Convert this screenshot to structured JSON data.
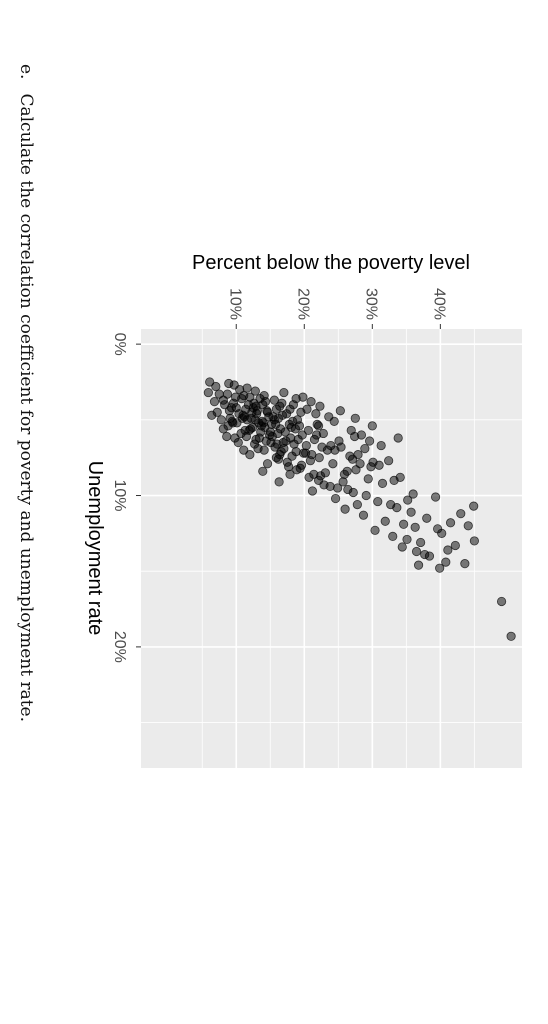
{
  "question": {
    "letter": "e.",
    "text": "Calculate the correlation coefficient for poverty and unemployment rate."
  },
  "chart_data": {
    "type": "scatter",
    "x_axis": {
      "label": "Unemployment rate",
      "range": [
        -1,
        28
      ],
      "ticks": [
        0,
        10,
        20
      ],
      "tick_labels": [
        "0%",
        "10%",
        "20%"
      ],
      "minor_ticks": [
        5,
        15,
        25
      ]
    },
    "y_axis": {
      "label": "Percent below the poverty level",
      "range": [
        -4,
        52
      ],
      "ticks": [
        10,
        20,
        30,
        40
      ],
      "tick_labels": [
        "10%",
        "20%",
        "30%",
        "40%"
      ],
      "minor_ticks": [
        5,
        15,
        25,
        35,
        45
      ]
    },
    "panel_background": "#ebebeb",
    "point_color": "#000000",
    "point_opacity": 0.5,
    "points": [
      [
        4.2,
        12.5
      ],
      [
        4.8,
        11.2
      ],
      [
        5.1,
        13.8
      ],
      [
        3.9,
        9.6
      ],
      [
        4.5,
        14.6
      ],
      [
        5.6,
        12.1
      ],
      [
        4.0,
        8.3
      ],
      [
        6.2,
        13.4
      ],
      [
        5.3,
        15.2
      ],
      [
        4.6,
        10.4
      ],
      [
        3.6,
        10.8
      ],
      [
        5.9,
        16.1
      ],
      [
        4.4,
        13.1
      ],
      [
        6.8,
        15.7
      ],
      [
        5.0,
        11.6
      ],
      [
        3.3,
        7.5
      ],
      [
        4.9,
        9.1
      ],
      [
        6.4,
        17.3
      ],
      [
        5.5,
        14.2
      ],
      [
        7.1,
        16.6
      ],
      [
        4.1,
        12.9
      ],
      [
        5.7,
        11.9
      ],
      [
        6.0,
        14.9
      ],
      [
        3.8,
        6.8
      ],
      [
        4.3,
        15.9
      ],
      [
        6.6,
        12.7
      ],
      [
        5.2,
        10.1
      ],
      [
        7.4,
        18.2
      ],
      [
        4.7,
        16.8
      ],
      [
        5.8,
        13.6
      ],
      [
        3.5,
        9.9
      ],
      [
        6.3,
        19.1
      ],
      [
        5.4,
        8.8
      ],
      [
        4.6,
        17.4
      ],
      [
        7.0,
        14.1
      ],
      [
        4.9,
        12.2
      ],
      [
        3.2,
        5.9
      ],
      [
        6.1,
        15.3
      ],
      [
        5.6,
        18.7
      ],
      [
        4.3,
        11.4
      ],
      [
        7.6,
        16.2
      ],
      [
        5.1,
        9.4
      ],
      [
        6.7,
        20.3
      ],
      [
        4.0,
        13.9
      ],
      [
        5.3,
        17.8
      ],
      [
        3.7,
        8.1
      ],
      [
        6.9,
        13.2
      ],
      [
        4.8,
        14.8
      ],
      [
        8.0,
        19.6
      ],
      [
        5.9,
        10.7
      ],
      [
        4.5,
        7.2
      ],
      [
        6.2,
        18.0
      ],
      [
        3.4,
        11.1
      ],
      [
        7.3,
        21.1
      ],
      [
        5.0,
        15.6
      ],
      [
        4.2,
        10.0
      ],
      [
        6.5,
        16.9
      ],
      [
        5.7,
        20.6
      ],
      [
        3.9,
        12.6
      ],
      [
        7.8,
        17.5
      ],
      [
        4.4,
        9.0
      ],
      [
        6.0,
        21.8
      ],
      [
        5.2,
        13.3
      ],
      [
        8.3,
        18.9
      ],
      [
        4.7,
        6.4
      ],
      [
        6.4,
        14.4
      ],
      [
        3.6,
        13.5
      ],
      [
        7.2,
        19.9
      ],
      [
        5.5,
        12.4
      ],
      [
        4.1,
        16.4
      ],
      [
        8.6,
        21.4
      ],
      [
        5.8,
        15.0
      ],
      [
        6.8,
        22.6
      ],
      [
        4.9,
        10.9
      ],
      [
        3.3,
        8.7
      ],
      [
        7.5,
        15.9
      ],
      [
        5.4,
        19.3
      ],
      [
        6.1,
        11.5
      ],
      [
        4.6,
        13.0
      ],
      [
        9.0,
        22.1
      ],
      [
        5.3,
        21.9
      ],
      [
        6.6,
        18.5
      ],
      [
        3.8,
        14.3
      ],
      [
        7.9,
        24.2
      ],
      [
        5.0,
        7.8
      ],
      [
        4.3,
        17.9
      ],
      [
        6.3,
        12.9
      ],
      [
        8.8,
        20.7
      ],
      [
        5.6,
        16.5
      ],
      [
        7.0,
        23.4
      ],
      [
        4.0,
        11.8
      ],
      [
        6.9,
        17.0
      ],
      [
        5.1,
        18.3
      ],
      [
        9.4,
        23.8
      ],
      [
        4.8,
        15.4
      ],
      [
        3.5,
        12.0
      ],
      [
        7.7,
        20.9
      ],
      [
        6.2,
        9.8
      ],
      [
        5.9,
        22.8
      ],
      [
        8.1,
        17.7
      ],
      [
        4.5,
        12.3
      ],
      [
        6.4,
        25.1
      ],
      [
        7.3,
        16.4
      ],
      [
        5.2,
        14.0
      ],
      [
        9.7,
        21.2
      ],
      [
        4.2,
        9.3
      ],
      [
        8.4,
        26.3
      ],
      [
        6.0,
        19.7
      ],
      [
        5.7,
        11.3
      ],
      [
        7.1,
        18.8
      ],
      [
        10.2,
        24.6
      ],
      [
        6.7,
        23.9
      ],
      [
        4.9,
        16.2
      ],
      [
        8.7,
        22.4
      ],
      [
        5.4,
        13.7
      ],
      [
        7.6,
        27.1
      ],
      [
        6.5,
        15.1
      ],
      [
        9.1,
        25.7
      ],
      [
        4.4,
        14.5
      ],
      [
        8.2,
        19.4
      ],
      [
        5.8,
        17.2
      ],
      [
        7.9,
        28.2
      ],
      [
        6.3,
        21.5
      ],
      [
        10.6,
        27.8
      ],
      [
        5.0,
        12.8
      ],
      [
        8.9,
        29.4
      ],
      [
        7.2,
        20.2
      ],
      [
        6.6,
        16.0
      ],
      [
        9.5,
        24.9
      ],
      [
        4.7,
        11.0
      ],
      [
        7.4,
        26.7
      ],
      [
        8.5,
        23.1
      ],
      [
        6.1,
        27.4
      ],
      [
        5.5,
        18.1
      ],
      [
        10.9,
        26.0
      ],
      [
        7.8,
        30.1
      ],
      [
        9.3,
        22.9
      ],
      [
        6.8,
        25.4
      ],
      [
        8.0,
        31.0
      ],
      [
        5.3,
        15.8
      ],
      [
        11.3,
        28.7
      ],
      [
        7.0,
        24.5
      ],
      [
        9.8,
        27.2
      ],
      [
        6.4,
        29.6
      ],
      [
        8.6,
        25.9
      ],
      [
        10.4,
        30.8
      ],
      [
        7.5,
        22.2
      ],
      [
        9.0,
        33.2
      ],
      [
        6.9,
        28.9
      ],
      [
        11.7,
        31.9
      ],
      [
        8.3,
        27.6
      ],
      [
        10.0,
        29.1
      ],
      [
        7.7,
        32.4
      ],
      [
        9.6,
        26.4
      ],
      [
        8.8,
        34.1
      ],
      [
        12.3,
        30.4
      ],
      [
        7.3,
        27.9
      ],
      [
        10.8,
        33.6
      ],
      [
        9.2,
        31.5
      ],
      [
        8.1,
        29.8
      ],
      [
        11.9,
        34.6
      ],
      [
        10.3,
        35.2
      ],
      [
        12.7,
        33.0
      ],
      [
        9.9,
        36.0
      ],
      [
        11.1,
        35.7
      ],
      [
        13.4,
        34.4
      ],
      [
        12.1,
        36.3
      ],
      [
        10.6,
        32.7
      ],
      [
        13.1,
        37.1
      ],
      [
        11.5,
        38.0
      ],
      [
        12.9,
        35.1
      ],
      [
        13.7,
        36.5
      ],
      [
        10.1,
        39.3
      ],
      [
        14.0,
        38.4
      ],
      [
        12.5,
        40.2
      ],
      [
        11.8,
        41.5
      ],
      [
        13.9,
        37.7
      ],
      [
        14.4,
        40.8
      ],
      [
        12.2,
        39.6
      ],
      [
        13.3,
        42.2
      ],
      [
        14.8,
        39.9
      ],
      [
        11.2,
        43.0
      ],
      [
        14.5,
        43.6
      ],
      [
        13.6,
        41.1
      ],
      [
        12.0,
        44.1
      ],
      [
        10.7,
        44.9
      ],
      [
        13.0,
        45.0
      ],
      [
        17.0,
        49.0
      ],
      [
        19.3,
        50.4
      ],
      [
        14.6,
        36.8
      ],
      [
        2.8,
        7.0
      ],
      [
        3.0,
        10.5
      ],
      [
        2.6,
        8.9
      ],
      [
        3.1,
        12.8
      ],
      [
        2.5,
        6.1
      ],
      [
        3.4,
        14.1
      ],
      [
        2.9,
        11.6
      ],
      [
        3.7,
        15.6
      ],
      [
        2.7,
        9.7
      ],
      [
        3.2,
        17.0
      ],
      [
        4.0,
        18.4
      ],
      [
        3.5,
        19.8
      ],
      [
        4.3,
        20.4
      ],
      [
        3.9,
        16.7
      ],
      [
        4.6,
        21.7
      ],
      [
        5.0,
        19.0
      ],
      [
        4.1,
        22.3
      ],
      [
        4.8,
        23.6
      ],
      [
        5.4,
        22.1
      ],
      [
        3.6,
        18.8
      ],
      [
        5.2,
        9.5
      ],
      [
        6.5,
        10.3
      ],
      [
        7.3,
        12.0
      ],
      [
        5.6,
        8.1
      ],
      [
        7.9,
        14.6
      ],
      [
        6.1,
        8.6
      ],
      [
        8.4,
        13.9
      ],
      [
        9.1,
        16.3
      ],
      [
        7.0,
        11.1
      ],
      [
        8.6,
        17.9
      ],
      [
        4.5,
        19.5
      ],
      [
        3.8,
        21.0
      ],
      [
        5.1,
        24.4
      ],
      [
        5.7,
        26.9
      ],
      [
        4.4,
        25.3
      ],
      [
        6.0,
        28.4
      ],
      [
        5.4,
        30.0
      ],
      [
        6.7,
        31.3
      ],
      [
        4.9,
        27.5
      ],
      [
        6.2,
        33.8
      ]
    ]
  }
}
